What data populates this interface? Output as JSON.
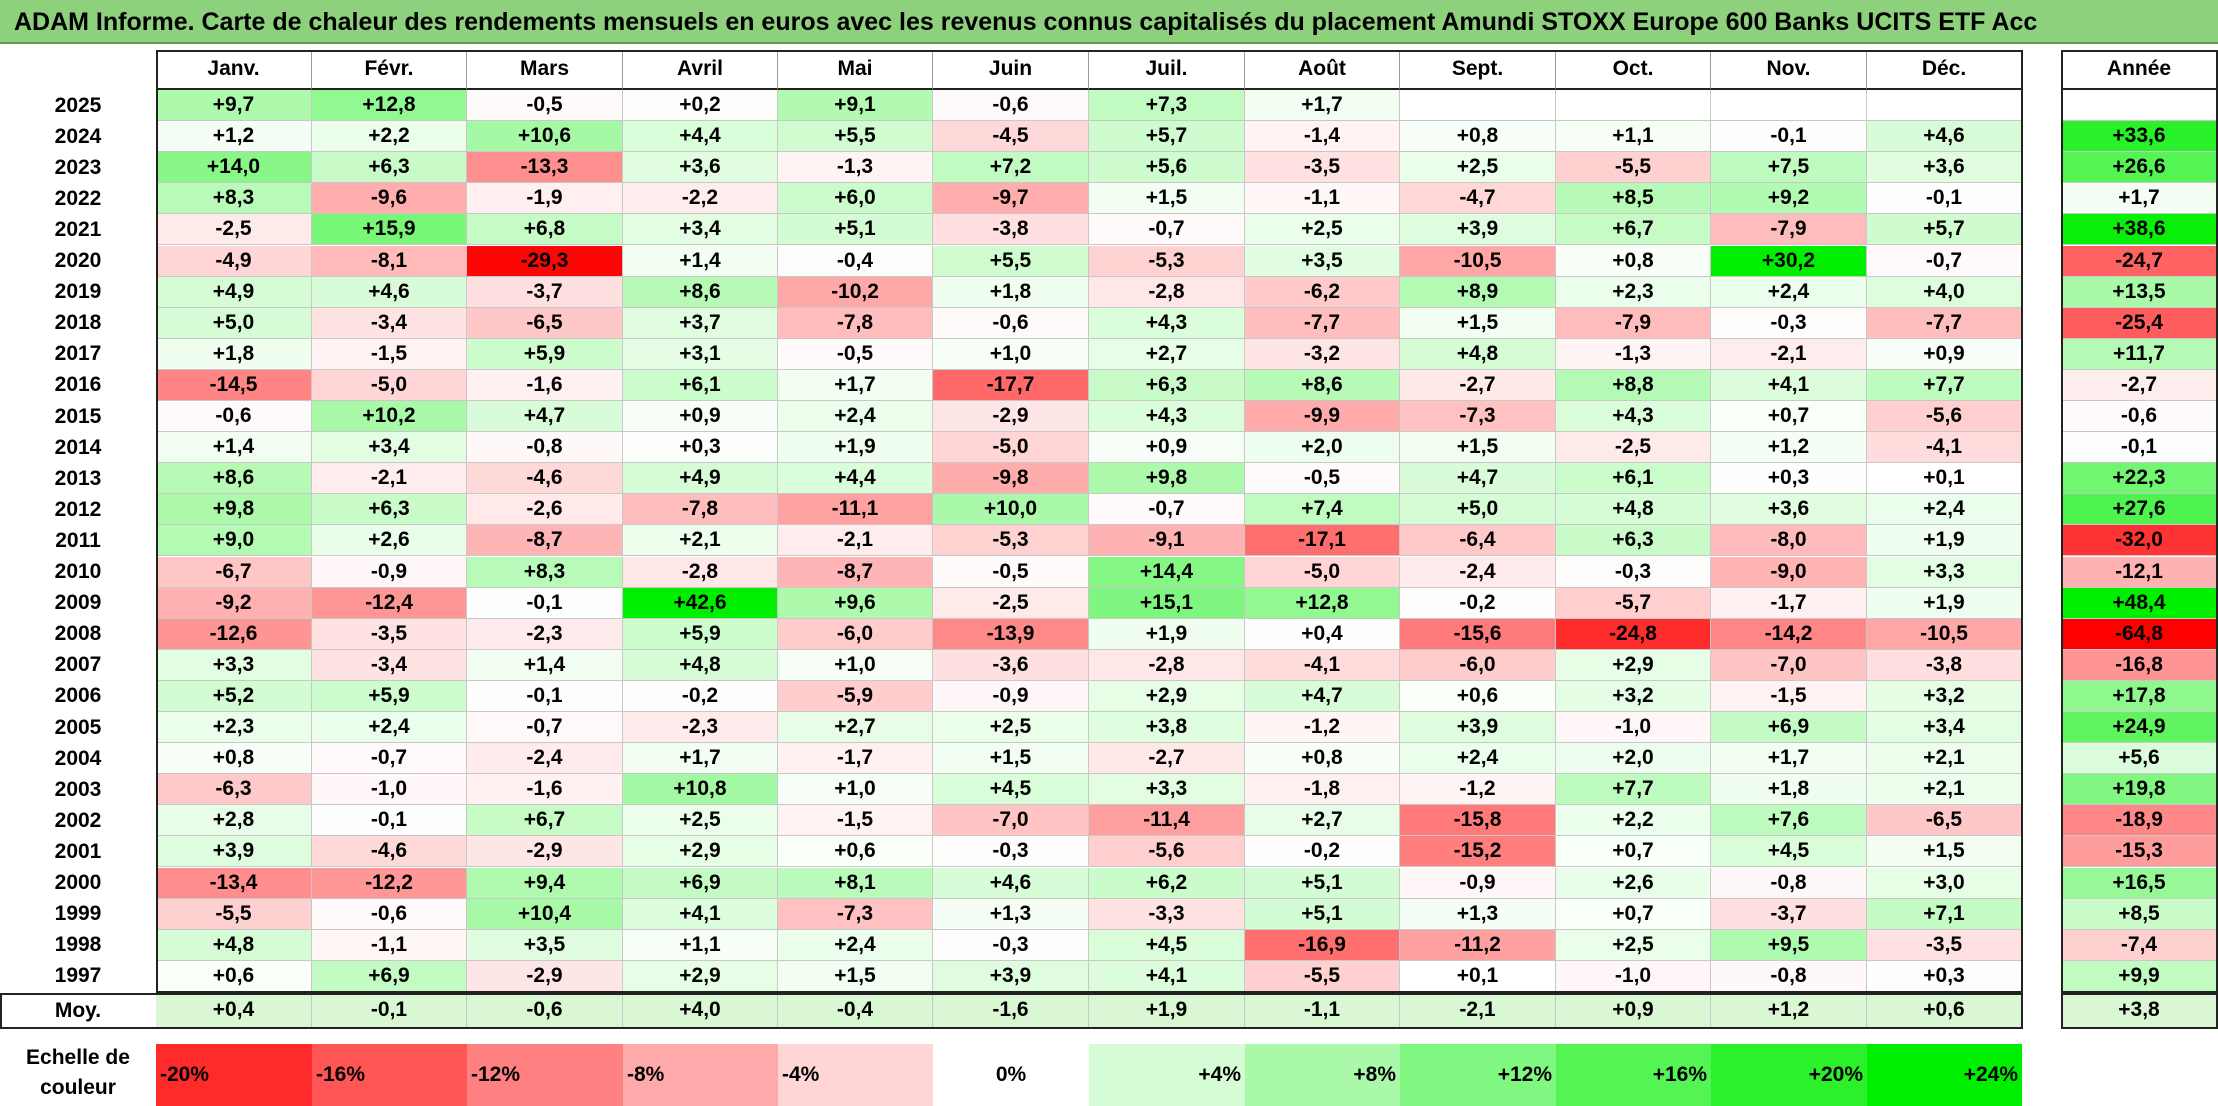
{
  "title": "ADAM Informe. Carte de chaleur des rendements mensuels en euros avec les revenus connus capitalisés du placement Amundi STOXX Europe 600 Banks UCITS ETF Acc",
  "chart_data": {
    "type": "heatmap",
    "title": "ADAM Informe. Carte de chaleur des rendements mensuels en euros avec les revenus connus capitalisés du placement Amundi STOXX Europe 600 Banks UCITS ETF Acc",
    "columns": [
      "Janv.",
      "Févr.",
      "Mars",
      "Avril",
      "Mai",
      "Juin",
      "Juil.",
      "Août",
      "Sept.",
      "Oct.",
      "Nov.",
      "Déc."
    ],
    "year_header": "Année",
    "rows": [
      {
        "year": "2025",
        "months": [
          "+9,7",
          "+12,8",
          "-0,5",
          "+0,2",
          "+9,1",
          "-0,6",
          "+7,3",
          "+1,7",
          "",
          "",
          "",
          ""
        ],
        "annual": ""
      },
      {
        "year": "2024",
        "months": [
          "+1,2",
          "+2,2",
          "+10,6",
          "+4,4",
          "+5,5",
          "-4,5",
          "+5,7",
          "-1,4",
          "+0,8",
          "+1,1",
          "-0,1",
          "+4,6"
        ],
        "annual": "+33,6"
      },
      {
        "year": "2023",
        "months": [
          "+14,0",
          "+6,3",
          "-13,3",
          "+3,6",
          "-1,3",
          "+7,2",
          "+5,6",
          "-3,5",
          "+2,5",
          "-5,5",
          "+7,5",
          "+3,6"
        ],
        "annual": "+26,6"
      },
      {
        "year": "2022",
        "months": [
          "+8,3",
          "-9,6",
          "-1,9",
          "-2,2",
          "+6,0",
          "-9,7",
          "+1,5",
          "-1,1",
          "-4,7",
          "+8,5",
          "+9,2",
          "-0,1"
        ],
        "annual": "+1,7"
      },
      {
        "year": "2021",
        "months": [
          "-2,5",
          "+15,9",
          "+6,8",
          "+3,4",
          "+5,1",
          "-3,8",
          "-0,7",
          "+2,5",
          "+3,9",
          "+6,7",
          "-7,9",
          "+5,7"
        ],
        "annual": "+38,6"
      },
      {
        "year": "2020",
        "months": [
          "-4,9",
          "-8,1",
          "-29,3",
          "+1,4",
          "-0,4",
          "+5,5",
          "-5,3",
          "+3,5",
          "-10,5",
          "+0,8",
          "+30,2",
          "-0,7"
        ],
        "annual": "-24,7"
      },
      {
        "year": "2019",
        "months": [
          "+4,9",
          "+4,6",
          "-3,7",
          "+8,6",
          "-10,2",
          "+1,8",
          "-2,8",
          "-6,2",
          "+8,9",
          "+2,3",
          "+2,4",
          "+4,0"
        ],
        "annual": "+13,5"
      },
      {
        "year": "2018",
        "months": [
          "+5,0",
          "-3,4",
          "-6,5",
          "+3,7",
          "-7,8",
          "-0,6",
          "+4,3",
          "-7,7",
          "+1,5",
          "-7,9",
          "-0,3",
          "-7,7"
        ],
        "annual": "-25,4"
      },
      {
        "year": "2017",
        "months": [
          "+1,8",
          "-1,5",
          "+5,9",
          "+3,1",
          "-0,5",
          "+1,0",
          "+2,7",
          "-3,2",
          "+4,8",
          "-1,3",
          "-2,1",
          "+0,9"
        ],
        "annual": "+11,7"
      },
      {
        "year": "2016",
        "months": [
          "-14,5",
          "-5,0",
          "-1,6",
          "+6,1",
          "+1,7",
          "-17,7",
          "+6,3",
          "+8,6",
          "-2,7",
          "+8,8",
          "+4,1",
          "+7,7"
        ],
        "annual": "-2,7"
      },
      {
        "year": "2015",
        "months": [
          "-0,6",
          "+10,2",
          "+4,7",
          "+0,9",
          "+2,4",
          "-2,9",
          "+4,3",
          "-9,9",
          "-7,3",
          "+4,3",
          "+0,7",
          "-5,6"
        ],
        "annual": "-0,6"
      },
      {
        "year": "2014",
        "months": [
          "+1,4",
          "+3,4",
          "-0,8",
          "+0,3",
          "+1,9",
          "-5,0",
          "+0,9",
          "+2,0",
          "+1,5",
          "-2,5",
          "+1,2",
          "-4,1"
        ],
        "annual": "-0,1"
      },
      {
        "year": "2013",
        "months": [
          "+8,6",
          "-2,1",
          "-4,6",
          "+4,9",
          "+4,4",
          "-9,8",
          "+9,8",
          "-0,5",
          "+4,7",
          "+6,1",
          "+0,3",
          "+0,1"
        ],
        "annual": "+22,3"
      },
      {
        "year": "2012",
        "months": [
          "+9,8",
          "+6,3",
          "-2,6",
          "-7,8",
          "-11,1",
          "+10,0",
          "-0,7",
          "+7,4",
          "+5,0",
          "+4,8",
          "+3,6",
          "+2,4"
        ],
        "annual": "+27,6"
      },
      {
        "year": "2011",
        "months": [
          "+9,0",
          "+2,6",
          "-8,7",
          "+2,1",
          "-2,1",
          "-5,3",
          "-9,1",
          "-17,1",
          "-6,4",
          "+6,3",
          "-8,0",
          "+1,9"
        ],
        "annual": "-32,0"
      },
      {
        "year": "2010",
        "months": [
          "-6,7",
          "-0,9",
          "+8,3",
          "-2,8",
          "-8,7",
          "-0,5",
          "+14,4",
          "-5,0",
          "-2,4",
          "-0,3",
          "-9,0",
          "+3,3"
        ],
        "annual": "-12,1"
      },
      {
        "year": "2009",
        "months": [
          "-9,2",
          "-12,4",
          "-0,1",
          "+42,6",
          "+9,6",
          "-2,5",
          "+15,1",
          "+12,8",
          "-0,2",
          "-5,7",
          "-1,7",
          "+1,9"
        ],
        "annual": "+48,4"
      },
      {
        "year": "2008",
        "months": [
          "-12,6",
          "-3,5",
          "-2,3",
          "+5,9",
          "-6,0",
          "-13,9",
          "+1,9",
          "+0,4",
          "-15,6",
          "-24,8",
          "-14,2",
          "-10,5"
        ],
        "annual": "-64,8"
      },
      {
        "year": "2007",
        "months": [
          "+3,3",
          "-3,4",
          "+1,4",
          "+4,8",
          "+1,0",
          "-3,6",
          "-2,8",
          "-4,1",
          "-6,0",
          "+2,9",
          "-7,0",
          "-3,8"
        ],
        "annual": "-16,8"
      },
      {
        "year": "2006",
        "months": [
          "+5,2",
          "+5,9",
          "-0,1",
          "-0,2",
          "-5,9",
          "-0,9",
          "+2,9",
          "+4,7",
          "+0,6",
          "+3,2",
          "-1,5",
          "+3,2"
        ],
        "annual": "+17,8"
      },
      {
        "year": "2005",
        "months": [
          "+2,3",
          "+2,4",
          "-0,7",
          "-2,3",
          "+2,7",
          "+2,5",
          "+3,8",
          "-1,2",
          "+3,9",
          "-1,0",
          "+6,9",
          "+3,4"
        ],
        "annual": "+24,9"
      },
      {
        "year": "2004",
        "months": [
          "+0,8",
          "-0,7",
          "-2,4",
          "+1,7",
          "-1,7",
          "+1,5",
          "-2,7",
          "+0,8",
          "+2,4",
          "+2,0",
          "+1,7",
          "+2,1"
        ],
        "annual": "+5,6"
      },
      {
        "year": "2003",
        "months": [
          "-6,3",
          "-1,0",
          "-1,6",
          "+10,8",
          "+1,0",
          "+4,5",
          "+3,3",
          "-1,8",
          "-1,2",
          "+7,7",
          "+1,8",
          "+2,1"
        ],
        "annual": "+19,8"
      },
      {
        "year": "2002",
        "months": [
          "+2,8",
          "-0,1",
          "+6,7",
          "+2,5",
          "-1,5",
          "-7,0",
          "-11,4",
          "+2,7",
          "-15,8",
          "+2,2",
          "+7,6",
          "-6,5"
        ],
        "annual": "-18,9"
      },
      {
        "year": "2001",
        "months": [
          "+3,9",
          "-4,6",
          "-2,9",
          "+2,9",
          "+0,6",
          "-0,3",
          "-5,6",
          "-0,2",
          "-15,2",
          "+0,7",
          "+4,5",
          "+1,5"
        ],
        "annual": "-15,3"
      },
      {
        "year": "2000",
        "months": [
          "-13,4",
          "-12,2",
          "+9,4",
          "+6,9",
          "+8,1",
          "+4,6",
          "+6,2",
          "+5,1",
          "-0,9",
          "+2,6",
          "-0,8",
          "+3,0"
        ],
        "annual": "+16,5"
      },
      {
        "year": "1999",
        "months": [
          "-5,5",
          "-0,6",
          "+10,4",
          "+4,1",
          "-7,3",
          "+1,3",
          "-3,3",
          "+5,1",
          "+1,3",
          "+0,7",
          "-3,7",
          "+7,1"
        ],
        "annual": "+8,5"
      },
      {
        "year": "1998",
        "months": [
          "+4,8",
          "-1,1",
          "+3,5",
          "+1,1",
          "+2,4",
          "-0,3",
          "+4,5",
          "-16,9",
          "-11,2",
          "+2,5",
          "+9,5",
          "-3,5"
        ],
        "annual": "-7,4"
      },
      {
        "year": "1997",
        "months": [
          "+0,6",
          "+6,9",
          "-2,9",
          "+2,9",
          "+1,5",
          "+3,9",
          "+4,1",
          "-5,5",
          "+0,1",
          "-1,0",
          "-0,8",
          "+0,3"
        ],
        "annual": "+9,9"
      }
    ],
    "average": {
      "label": "Moy.",
      "months": [
        "+0,4",
        "-0,1",
        "-0,6",
        "+4,0",
        "-0,4",
        "-1,6",
        "+1,9",
        "-1,1",
        "-2,1",
        "+0,9",
        "+1,2",
        "+0,6"
      ],
      "annual": "+3,8"
    },
    "color_scale": {
      "label": "Echelle de couleur",
      "stops": [
        "-20%",
        "-16%",
        "-12%",
        "-8%",
        "-4%",
        "0%",
        "+4%",
        "+8%",
        "+12%",
        "+16%",
        "+20%",
        "+24%"
      ],
      "stop_values": [
        -20,
        -16,
        -12,
        -8,
        -4,
        0,
        4,
        8,
        12,
        16,
        20,
        24
      ],
      "negative_color": "#ff0000",
      "positive_color": "#00ee00",
      "neutral_color": "#ffffff"
    }
  }
}
